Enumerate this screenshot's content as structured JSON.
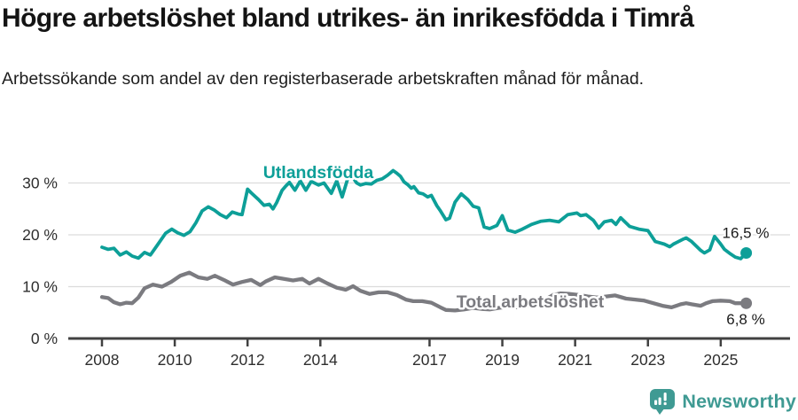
{
  "header": {
    "title": "Högre arbetslöshet bland utrikes- än inrikesfödda i Timrå",
    "subtitle": "Arbetssökande som andel av den registerbaserade arbetskraften månad för månad."
  },
  "chart_data": {
    "type": "line",
    "title": "Högre arbetslöshet bland utrikes- än inrikesfödda i Timrå",
    "subtitle": "Arbetssökande som andel av den registerbaserade arbetskraften månad för månad.",
    "unit": "%",
    "grid": true,
    "legend_position": "inline-labels",
    "x_axis": {
      "ticks": [
        2008,
        2010,
        2012,
        2014,
        2017,
        2019,
        2021,
        2023,
        2025
      ],
      "range": [
        2007.1,
        2026.9
      ]
    },
    "y_axis": {
      "ticks": [
        0,
        10,
        20,
        30
      ],
      "tick_labels": [
        "0 %",
        "10 %",
        "20 %",
        "30 %"
      ],
      "range": [
        0,
        33.5
      ]
    },
    "colors": {
      "axis": "#414141",
      "gridline": "#dcdcdc",
      "tick_text": "#2e2e2e",
      "value_label_text": "#1a1a1a"
    },
    "series": [
      {
        "id": "utlandsfodda",
        "name": "Utlandsfödda",
        "color": "#0d9f98",
        "end_value": 16.5,
        "end_label": "16,5 %",
        "points": [
          [
            2008.0,
            17.6
          ],
          [
            2008.17,
            17.2
          ],
          [
            2008.33,
            17.4
          ],
          [
            2008.5,
            16.1
          ],
          [
            2008.67,
            16.7
          ],
          [
            2008.83,
            15.9
          ],
          [
            2009.0,
            15.5
          ],
          [
            2009.17,
            16.6
          ],
          [
            2009.33,
            16.1
          ],
          [
            2009.5,
            17.8
          ],
          [
            2009.75,
            20.3
          ],
          [
            2009.92,
            21.1
          ],
          [
            2010.08,
            20.4
          ],
          [
            2010.25,
            19.9
          ],
          [
            2010.42,
            20.6
          ],
          [
            2010.58,
            22.3
          ],
          [
            2010.75,
            24.6
          ],
          [
            2010.92,
            25.4
          ],
          [
            2011.08,
            24.8
          ],
          [
            2011.25,
            23.9
          ],
          [
            2011.42,
            23.3
          ],
          [
            2011.58,
            24.4
          ],
          [
            2011.75,
            24.0
          ],
          [
            2011.85,
            23.9
          ],
          [
            2012.0,
            28.8
          ],
          [
            2012.1,
            28.1
          ],
          [
            2012.3,
            26.8
          ],
          [
            2012.45,
            25.7
          ],
          [
            2012.6,
            25.9
          ],
          [
            2012.7,
            25.0
          ],
          [
            2012.8,
            26.2
          ],
          [
            2012.95,
            28.6
          ],
          [
            2013.05,
            29.4
          ],
          [
            2013.15,
            30.1
          ],
          [
            2013.3,
            28.6
          ],
          [
            2013.45,
            30.4
          ],
          [
            2013.6,
            28.6
          ],
          [
            2013.75,
            30.3
          ],
          [
            2013.95,
            29.6
          ],
          [
            2014.1,
            30.0
          ],
          [
            2014.3,
            28.0
          ],
          [
            2014.45,
            30.4
          ],
          [
            2014.6,
            27.3
          ],
          [
            2014.75,
            30.8
          ],
          [
            2014.87,
            31.3
          ],
          [
            2015.0,
            30.0
          ],
          [
            2015.1,
            29.6
          ],
          [
            2015.25,
            29.9
          ],
          [
            2015.4,
            29.8
          ],
          [
            2015.55,
            30.5
          ],
          [
            2015.7,
            30.8
          ],
          [
            2015.85,
            31.5
          ],
          [
            2016.0,
            32.4
          ],
          [
            2016.1,
            31.9
          ],
          [
            2016.2,
            31.3
          ],
          [
            2016.3,
            30.2
          ],
          [
            2016.4,
            29.7
          ],
          [
            2016.5,
            29.0
          ],
          [
            2016.57,
            29.3
          ],
          [
            2016.7,
            28.1
          ],
          [
            2016.82,
            27.9
          ],
          [
            2016.95,
            27.3
          ],
          [
            2017.05,
            27.6
          ],
          [
            2017.2,
            25.6
          ],
          [
            2017.3,
            24.6
          ],
          [
            2017.45,
            22.9
          ],
          [
            2017.55,
            23.2
          ],
          [
            2017.7,
            26.3
          ],
          [
            2017.87,
            27.9
          ],
          [
            2018.05,
            26.8
          ],
          [
            2018.2,
            25.5
          ],
          [
            2018.35,
            25.2
          ],
          [
            2018.5,
            21.5
          ],
          [
            2018.65,
            21.2
          ],
          [
            2018.85,
            21.8
          ],
          [
            2019.0,
            23.7
          ],
          [
            2019.15,
            20.9
          ],
          [
            2019.35,
            20.5
          ],
          [
            2019.55,
            21.1
          ],
          [
            2019.8,
            22.0
          ],
          [
            2020.05,
            22.6
          ],
          [
            2020.3,
            22.8
          ],
          [
            2020.55,
            22.5
          ],
          [
            2020.8,
            23.9
          ],
          [
            2021.05,
            24.2
          ],
          [
            2021.15,
            23.7
          ],
          [
            2021.3,
            23.9
          ],
          [
            2021.5,
            22.8
          ],
          [
            2021.65,
            21.3
          ],
          [
            2021.8,
            22.5
          ],
          [
            2022.0,
            22.8
          ],
          [
            2022.12,
            22.0
          ],
          [
            2022.25,
            23.3
          ],
          [
            2022.5,
            21.6
          ],
          [
            2022.75,
            21.1
          ],
          [
            2023.0,
            20.8
          ],
          [
            2023.2,
            18.7
          ],
          [
            2023.45,
            18.2
          ],
          [
            2023.6,
            17.7
          ],
          [
            2023.7,
            18.2
          ],
          [
            2023.95,
            19.1
          ],
          [
            2024.05,
            19.4
          ],
          [
            2024.2,
            18.7
          ],
          [
            2024.45,
            17.0
          ],
          [
            2024.55,
            16.5
          ],
          [
            2024.7,
            17.1
          ],
          [
            2024.83,
            19.7
          ],
          [
            2024.98,
            18.4
          ],
          [
            2025.1,
            17.2
          ],
          [
            2025.27,
            16.3
          ],
          [
            2025.4,
            15.7
          ],
          [
            2025.55,
            15.4
          ],
          [
            2025.7,
            16.5
          ]
        ]
      },
      {
        "id": "total",
        "name": "Total arbetslöshet",
        "color": "#7b7b80",
        "end_value": 6.8,
        "end_label": "6,8 %",
        "points": [
          [
            2008.0,
            8.0
          ],
          [
            2008.17,
            7.8
          ],
          [
            2008.33,
            7.0
          ],
          [
            2008.5,
            6.6
          ],
          [
            2008.67,
            6.9
          ],
          [
            2008.83,
            6.8
          ],
          [
            2009.0,
            7.9
          ],
          [
            2009.17,
            9.7
          ],
          [
            2009.4,
            10.4
          ],
          [
            2009.65,
            10.0
          ],
          [
            2009.9,
            10.9
          ],
          [
            2010.15,
            12.1
          ],
          [
            2010.4,
            12.7
          ],
          [
            2010.65,
            11.8
          ],
          [
            2010.9,
            11.5
          ],
          [
            2011.1,
            12.1
          ],
          [
            2011.35,
            11.3
          ],
          [
            2011.6,
            10.4
          ],
          [
            2011.85,
            10.9
          ],
          [
            2012.1,
            11.3
          ],
          [
            2012.35,
            10.3
          ],
          [
            2012.5,
            11.0
          ],
          [
            2012.75,
            11.8
          ],
          [
            2013.0,
            11.5
          ],
          [
            2013.25,
            11.2
          ],
          [
            2013.5,
            11.5
          ],
          [
            2013.7,
            10.6
          ],
          [
            2013.95,
            11.5
          ],
          [
            2014.2,
            10.6
          ],
          [
            2014.45,
            9.8
          ],
          [
            2014.7,
            9.4
          ],
          [
            2014.9,
            10.1
          ],
          [
            2015.1,
            9.2
          ],
          [
            2015.35,
            8.6
          ],
          [
            2015.6,
            8.9
          ],
          [
            2015.85,
            8.9
          ],
          [
            2016.1,
            8.4
          ],
          [
            2016.35,
            7.5
          ],
          [
            2016.55,
            7.2
          ],
          [
            2016.8,
            7.2
          ],
          [
            2017.05,
            6.9
          ],
          [
            2017.3,
            6.0
          ],
          [
            2017.45,
            5.5
          ],
          [
            2017.7,
            5.4
          ],
          [
            2017.95,
            5.6
          ],
          [
            2018.2,
            5.9
          ],
          [
            2018.45,
            5.7
          ],
          [
            2018.65,
            5.6
          ],
          [
            2018.9,
            5.9
          ],
          [
            2019.15,
            6.1
          ],
          [
            2019.4,
            6.0
          ],
          [
            2019.65,
            6.2
          ],
          [
            2019.9,
            6.5
          ],
          [
            2020.15,
            7.4
          ],
          [
            2020.4,
            8.4
          ],
          [
            2020.6,
            8.7
          ],
          [
            2020.85,
            8.6
          ],
          [
            2021.1,
            8.4
          ],
          [
            2021.35,
            8.1
          ],
          [
            2021.6,
            7.9
          ],
          [
            2021.85,
            8.1
          ],
          [
            2022.1,
            8.3
          ],
          [
            2022.4,
            7.7
          ],
          [
            2022.65,
            7.5
          ],
          [
            2022.9,
            7.3
          ],
          [
            2023.15,
            6.8
          ],
          [
            2023.4,
            6.3
          ],
          [
            2023.65,
            6.0
          ],
          [
            2023.9,
            6.6
          ],
          [
            2024.05,
            6.8
          ],
          [
            2024.2,
            6.6
          ],
          [
            2024.45,
            6.3
          ],
          [
            2024.6,
            6.8
          ],
          [
            2024.77,
            7.2
          ],
          [
            2025.0,
            7.3
          ],
          [
            2025.25,
            7.2
          ],
          [
            2025.4,
            6.8
          ],
          [
            2025.7,
            6.8
          ]
        ]
      }
    ]
  },
  "footer": {
    "brand": "Newsworthy",
    "brand_color": "#3f9a93",
    "logo_icon": "bar-chart-speech-bubble-icon"
  }
}
